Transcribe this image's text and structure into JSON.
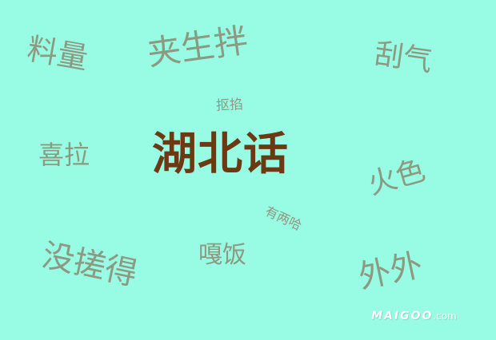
{
  "colors": {
    "background": "#98fce4",
    "title": "#6b3a12",
    "words": "#8b9a80",
    "watermark": "#ffffff"
  },
  "title": "湖北话",
  "words": {
    "liaoliang": "料量",
    "jiasheng": "夹生拌",
    "guaqi": "刮气",
    "kouqi": "抠掐",
    "xila": "喜拉",
    "huose": "火色",
    "youlianga": "有两哈",
    "gafan": "嘎饭",
    "meicuode": "没搓得",
    "waiwai": "外外"
  },
  "watermark": {
    "brand": "MAIGOO",
    "domain": ".com"
  }
}
